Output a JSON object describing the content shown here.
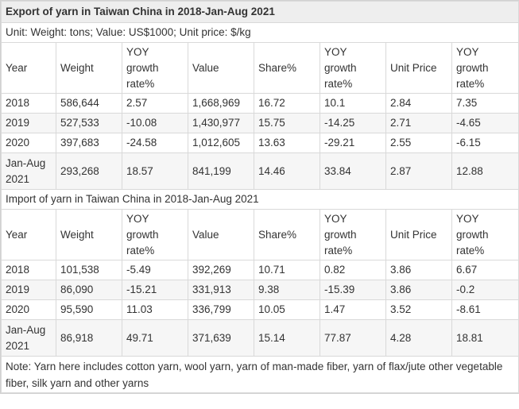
{
  "title": "Export of yarn in Taiwan China in 2018-Jan-Aug 2021",
  "unit_line": "Unit: Weight: tons; Value: US$1000; Unit price: $/kg",
  "import_title": "Import of yarn in Taiwan China in 2018-Jan-Aug 2021",
  "headers": [
    "Year",
    "Weight",
    "YOY\ngrowth\nrate%",
    "Value",
    "Share%",
    "YOY\ngrowth\nrate%",
    "Unit Price",
    "YOY\ngrowth\nrate%"
  ],
  "export_rows": [
    [
      "2018",
      "586,644",
      "2.57",
      "1,668,969",
      "16.72",
      "10.1",
      "2.84",
      "7.35"
    ],
    [
      "2019",
      "527,533",
      "-10.08",
      "1,430,977",
      "15.75",
      "-14.25",
      "2.71",
      "-4.65"
    ],
    [
      "2020",
      "397,683",
      "-24.58",
      "1,012,605",
      "13.63",
      "-29.21",
      "2.55",
      "-6.15"
    ],
    [
      "Jan-Aug\n2021",
      "293,268",
      "18.57",
      "841,199",
      "14.46",
      "33.84",
      "2.87",
      "12.88"
    ]
  ],
  "import_rows": [
    [
      "2018",
      "101,538",
      "-5.49",
      "392,269",
      "10.71",
      "0.82",
      "3.86",
      "6.67"
    ],
    [
      "2019",
      "86,090",
      "-15.21",
      "331,913",
      "9.38",
      "-15.39",
      "3.86",
      "-0.2"
    ],
    [
      "2020",
      "95,590",
      "11.03",
      "336,799",
      "10.05",
      "1.47",
      "3.52",
      "-8.61"
    ],
    [
      "Jan-Aug\n2021",
      "86,918",
      "49.71",
      "371,639",
      "15.14",
      "77.87",
      "4.28",
      "18.81"
    ]
  ],
  "note": "Note: Yarn here includes cotton yarn, wool yarn, yarn of man-made fiber, yarn of flax/jute other vegetable fiber, silk yarn and other yarns"
}
